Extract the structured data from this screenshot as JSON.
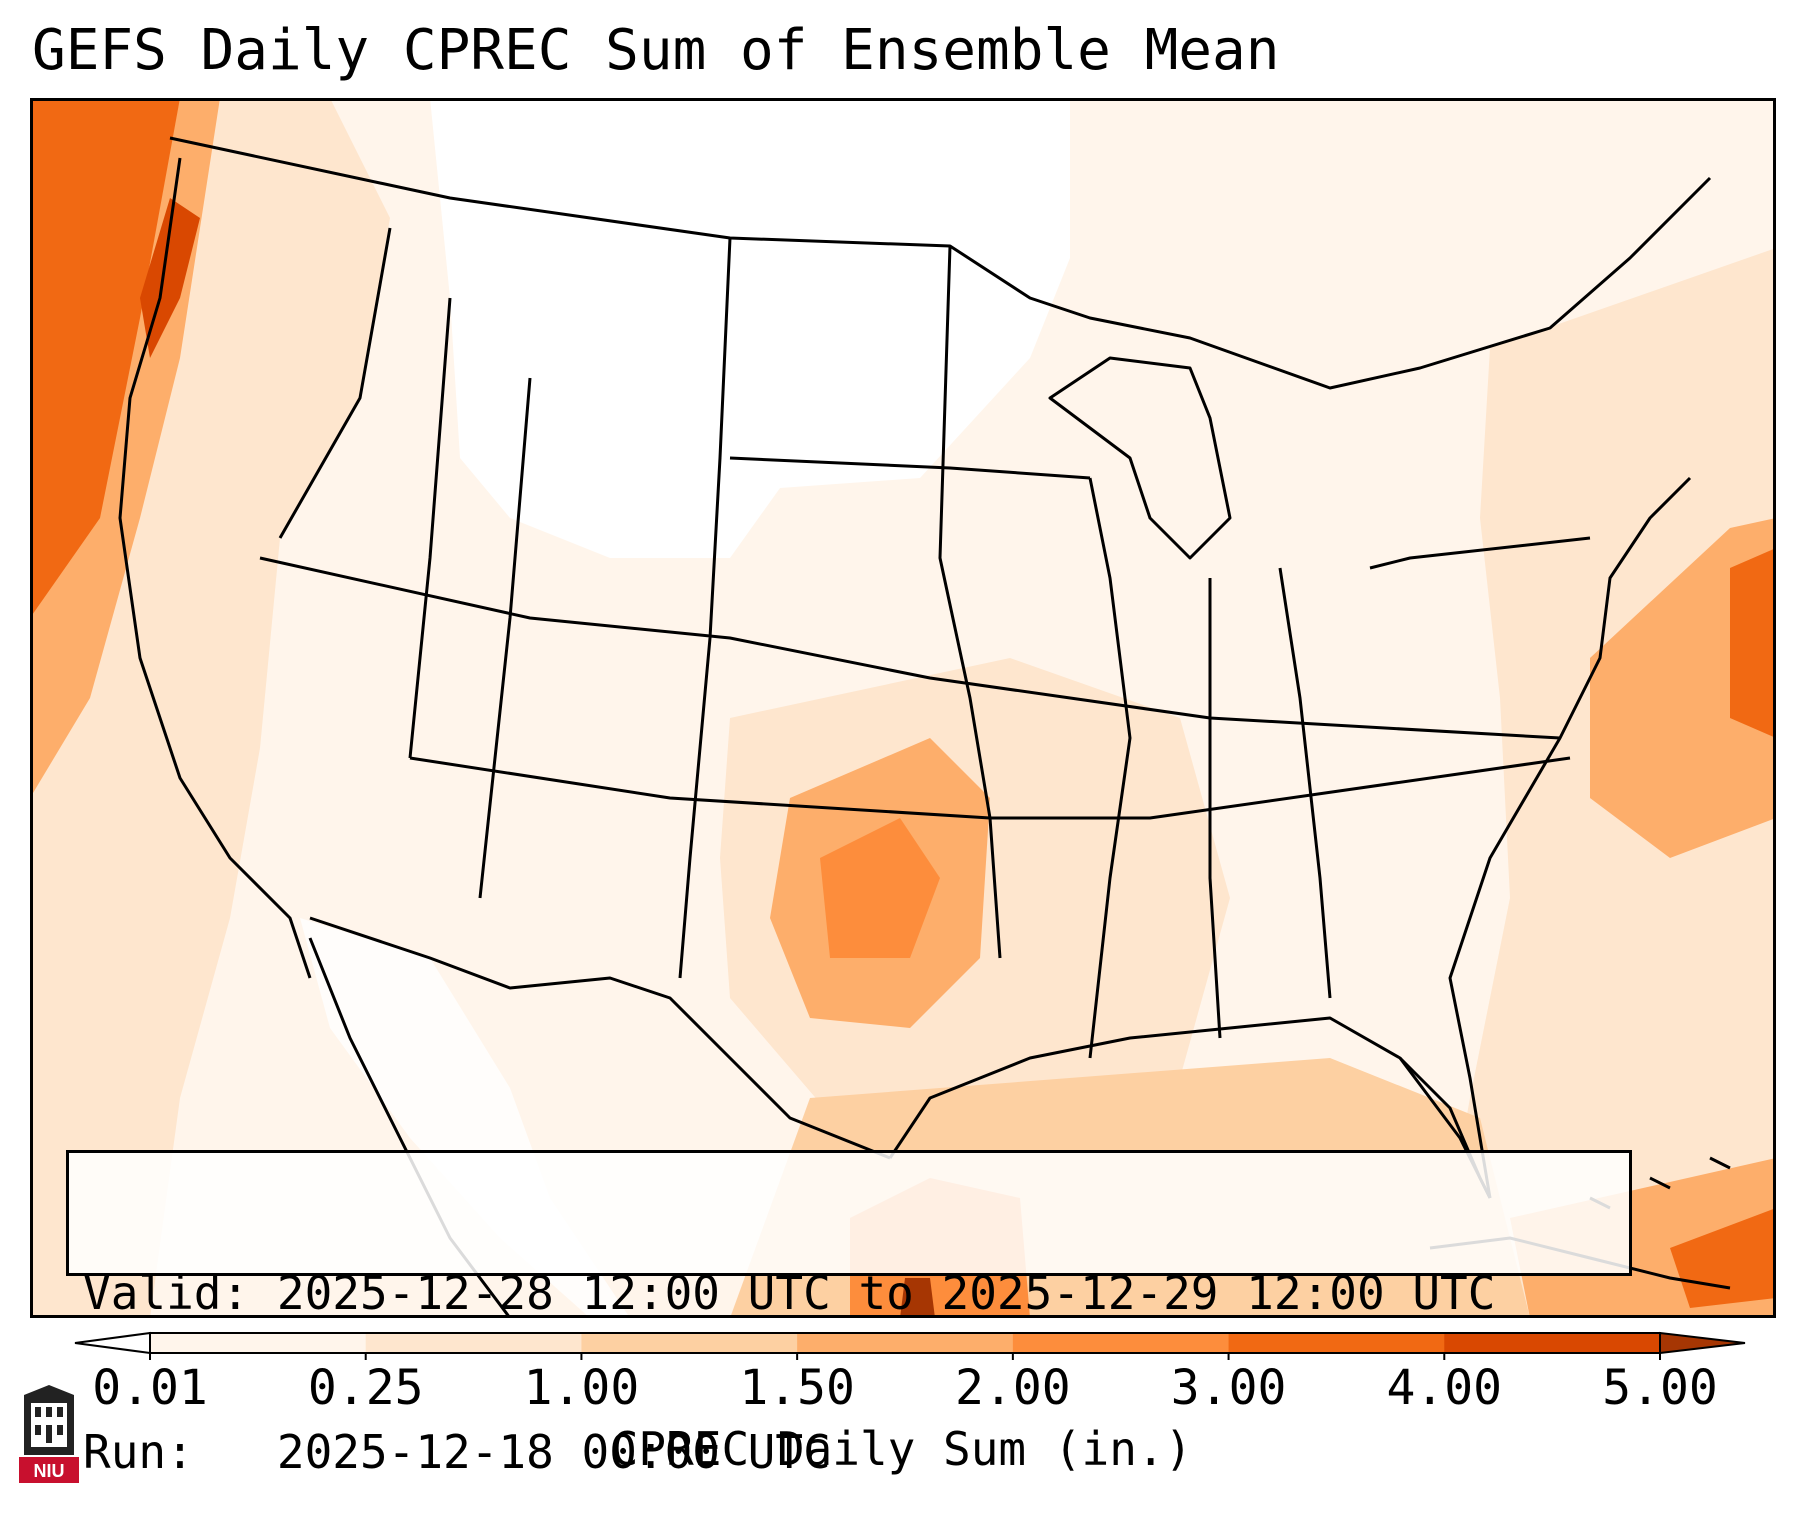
{
  "title": "GEFS Daily CPREC Sum of Ensemble Mean",
  "info": {
    "valid_label": "Valid:",
    "valid_value": "2025-12-28 12:00 UTC to 2025-12-29 12:00 UTC",
    "run_label": "Run:  ",
    "run_value": "2025-12-18 00:00 UTC"
  },
  "colorbar": {
    "label": "CPREC Daily Sum (in.)",
    "ticks": [
      "0.01",
      "0.25",
      "1.00",
      "1.50",
      "2.00",
      "3.00",
      "4.00",
      "5.00"
    ],
    "colors": [
      "#fff5eb",
      "#fee6ce",
      "#fdd0a2",
      "#fdae6b",
      "#fd8d3c",
      "#f16913",
      "#d94801"
    ],
    "under_color": "#ffffff",
    "over_color": "#a63603"
  },
  "logo": {
    "text": "NIU"
  },
  "map": {
    "region": "Continental United States",
    "precip_areas": [
      {
        "name": "Pacific Northwest coast",
        "level": "3.00–4.00"
      },
      {
        "name": "Southern Plains (Oklahoma / Texas)",
        "level": "1.50–2.00"
      },
      {
        "name": "Western Gulf of Mexico",
        "level": "1.50–2.00"
      },
      {
        "name": "Western Atlantic",
        "level": "2.00–3.00"
      },
      {
        "name": "Caribbean near Cuba",
        "level": "2.00–3.00"
      }
    ]
  }
}
